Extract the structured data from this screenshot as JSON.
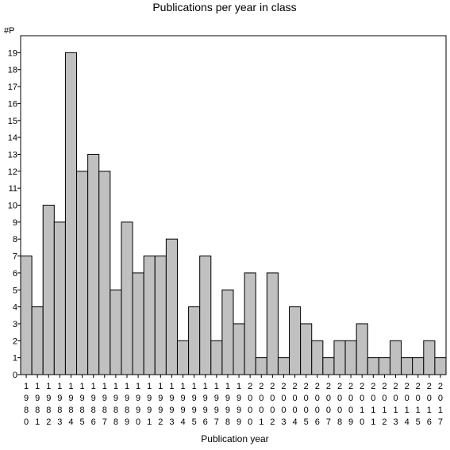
{
  "chart_data": {
    "type": "bar",
    "title": "Publications per year in class",
    "xlabel": "Publication year",
    "ylabel": "#P",
    "ylim": [
      0,
      20
    ],
    "yticks": [
      0,
      1,
      2,
      3,
      4,
      5,
      6,
      7,
      8,
      9,
      10,
      11,
      12,
      13,
      14,
      15,
      16,
      17,
      18,
      19
    ],
    "grid": false,
    "legend": "none",
    "categories": [
      "1980",
      "1981",
      "1982",
      "1983",
      "1984",
      "1985",
      "1986",
      "1987",
      "1988",
      "1989",
      "1990",
      "1991",
      "1992",
      "1993",
      "1994",
      "1995",
      "1996",
      "1997",
      "1998",
      "1999",
      "2000",
      "2001",
      "2002",
      "2003",
      "2004",
      "2005",
      "2006",
      "2007",
      "2008",
      "2009",
      "2010",
      "2011",
      "2012",
      "2013",
      "2014",
      "2015",
      "2016",
      "2017"
    ],
    "values": [
      7,
      4,
      10,
      9,
      19,
      12,
      13,
      12,
      5,
      9,
      6,
      7,
      7,
      8,
      2,
      4,
      7,
      2,
      5,
      3,
      6,
      1,
      6,
      1,
      4,
      3,
      2,
      1,
      2,
      2,
      3,
      1,
      1,
      2,
      1,
      1,
      2,
      1
    ],
    "bar_color": "#c0c0c0",
    "bar_edge_color": "#000000"
  }
}
